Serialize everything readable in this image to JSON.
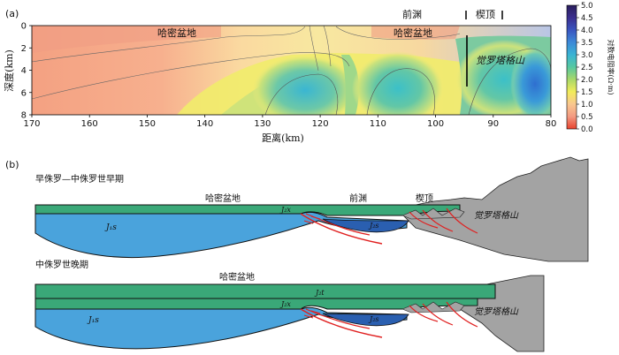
{
  "panel_a": {
    "label": "(a)",
    "xlabel": "距离(km)",
    "ylabel": "深度(km)",
    "x_ticks": [
      "170",
      "160",
      "150",
      "140",
      "130",
      "120",
      "110",
      "100",
      "90",
      "80"
    ],
    "y_ticks": [
      "0",
      "2",
      "4",
      "6",
      "8"
    ],
    "annotations": {
      "hami_left": "哈密盆地",
      "hami_right": "哈密盆地",
      "foredeep": "前渊",
      "wedge_top": "楔顶",
      "jueluotage": "觉罗塔格山"
    },
    "colorbar": {
      "title": "对数电阻率(Ω·m)",
      "ticks": [
        "5.0",
        "4.5",
        "4.0",
        "3.5",
        "3.0",
        "2.5",
        "2.0",
        "1.5",
        "1.0",
        "0.5",
        "0.0"
      ]
    }
  },
  "panel_b": {
    "label": "(b)",
    "section1": {
      "title": "早侏罗—中侏罗世早期",
      "hami": "哈密盆地",
      "foredeep": "前渊",
      "wedge_top": "楔顶",
      "mountain": "觉罗塔格山",
      "unit_j1s": "J₁s",
      "unit_j2x": "J₂x",
      "unit_j2s": "J₂s"
    },
    "section2": {
      "title": "中侏罗世晚期",
      "hami": "哈密盆地",
      "mountain": "觉罗塔格山",
      "unit_j1s": "J₁s",
      "unit_j2x": "J₂x",
      "unit_j2t": "J₂t",
      "unit_j2s": "J₂s"
    }
  },
  "colors": {
    "green_layer": "#3aa878",
    "blue_layer": "#4aa3dc",
    "dark_blue_layer": "#2a5fb0",
    "mountain": "#a0a0a0",
    "fault": "#e02020"
  }
}
